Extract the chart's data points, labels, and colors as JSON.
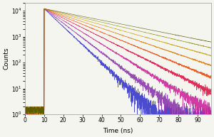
{
  "title": "",
  "xlabel": "Time (ns)",
  "ylabel": "Counts",
  "xlim": [
    0,
    97
  ],
  "ylim_log": [
    1,
    20000
  ],
  "x_ticks": [
    0,
    10,
    20,
    30,
    40,
    50,
    60,
    70,
    80,
    90
  ],
  "peak_time": 10.0,
  "peak_counts": 12000,
  "num_curves": 9,
  "decay_rates": [
    0.16,
    0.13,
    0.105,
    0.085,
    0.07,
    0.058,
    0.048,
    0.04,
    0.034
  ],
  "colors": [
    "#3333cc",
    "#8833aa",
    "#cc2299",
    "#dd1144",
    "#ee4400",
    "#dd7700",
    "#cc9900",
    "#888800",
    "#555500"
  ],
  "noise_scales": [
    0.9,
    0.7,
    0.55,
    0.45,
    0.38,
    0.32,
    0.27,
    0.23,
    0.2
  ],
  "background_color": "#f5f5f0",
  "pre_peak_noise_max": 2.0,
  "seed": 123
}
